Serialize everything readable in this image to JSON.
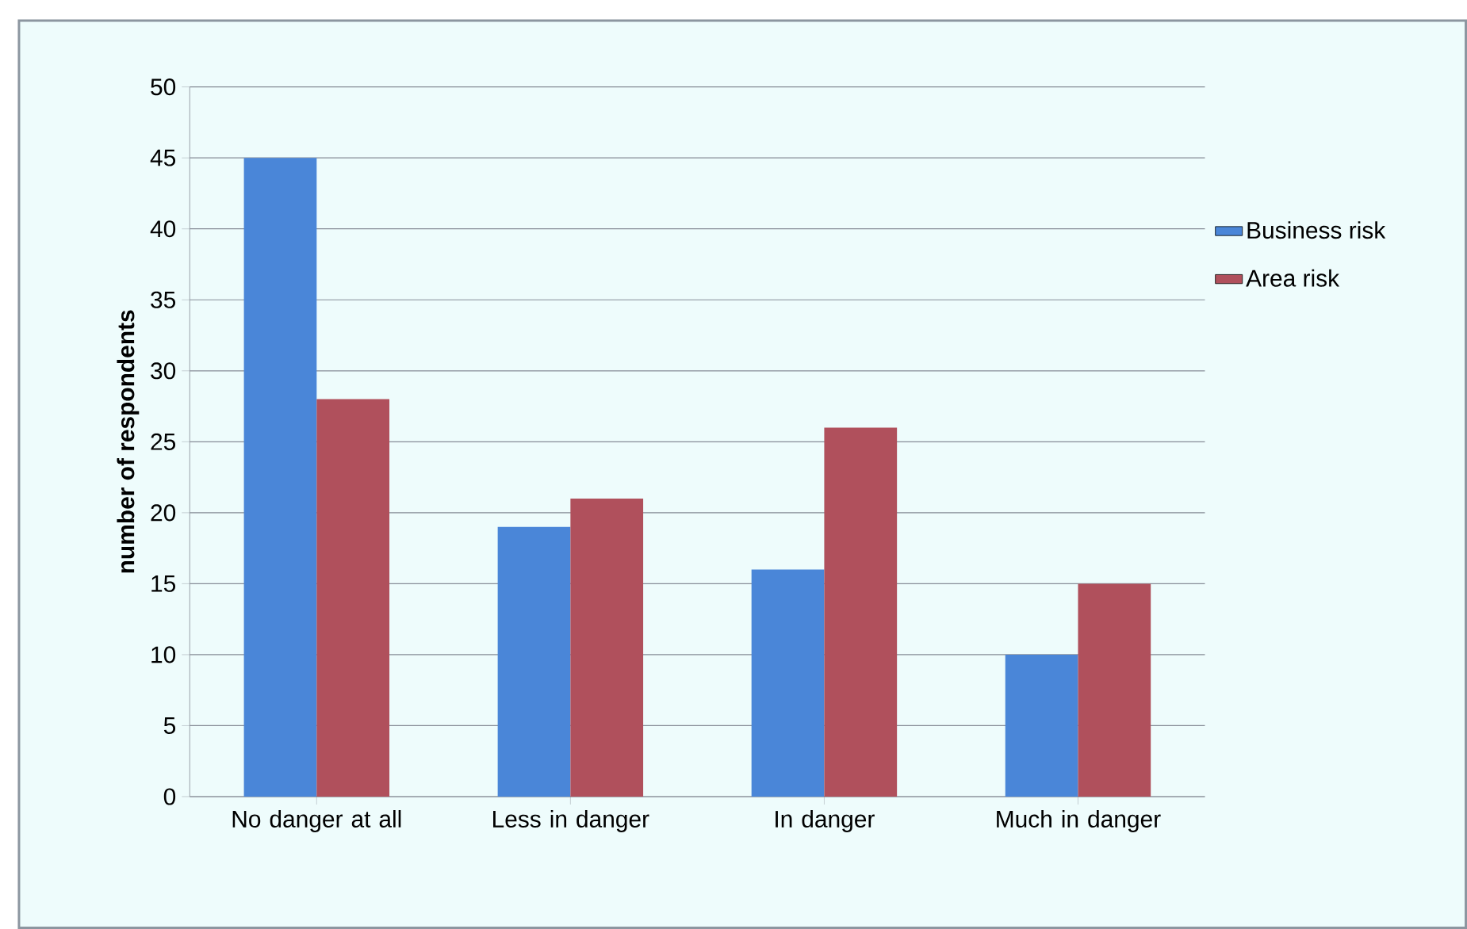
{
  "chart_data": {
    "type": "bar",
    "ylabel": "number of respondents",
    "categories": [
      "No danger at all",
      "Less in danger",
      "In danger",
      "Much in danger"
    ],
    "series": [
      {
        "name": "Business risk",
        "color": "#4a86d8",
        "values": [
          45,
          19,
          16,
          10
        ]
      },
      {
        "name": "Area risk",
        "color": "#b0505c",
        "values": [
          28,
          21,
          26,
          15
        ]
      }
    ],
    "ylim": [
      0,
      50
    ],
    "yticks": [
      0,
      5,
      10,
      15,
      20,
      25,
      30,
      35,
      40,
      45,
      50
    ],
    "grid": "y",
    "legend": "right"
  }
}
